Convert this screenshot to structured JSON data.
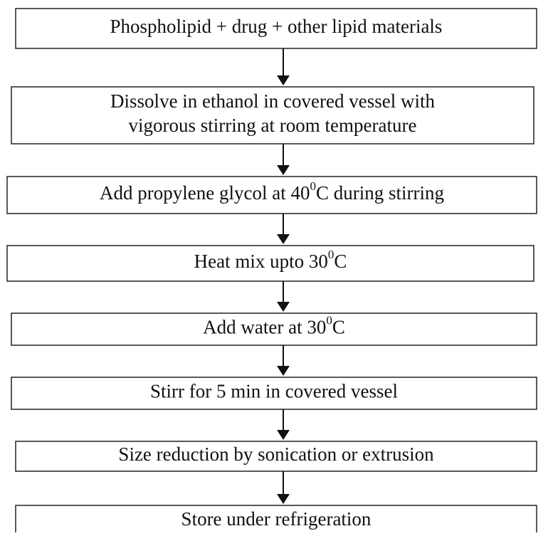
{
  "nodes": [
    {
      "lines": [
        "Phospholipid + drug + other lipid materials"
      ]
    },
    {
      "lines": [
        "Dissolve in ethanol in covered vessel with",
        "vigorous stirring at room temperature"
      ]
    },
    {
      "lines": [
        "Add propylene glycol at 40"
      ],
      "sup": "0",
      "after": "C during stirring"
    },
    {
      "lines": [
        "Heat mix upto 30"
      ],
      "sup": "0",
      "after": "C"
    },
    {
      "lines": [
        "Add water at 30"
      ],
      "sup": "0",
      "after": "C"
    },
    {
      "lines": [
        "Stirr for 5 min in covered vessel"
      ]
    },
    {
      "lines": [
        "Size reduction by sonication or extrusion"
      ]
    },
    {
      "lines": [
        "Store under refrigeration"
      ]
    }
  ]
}
